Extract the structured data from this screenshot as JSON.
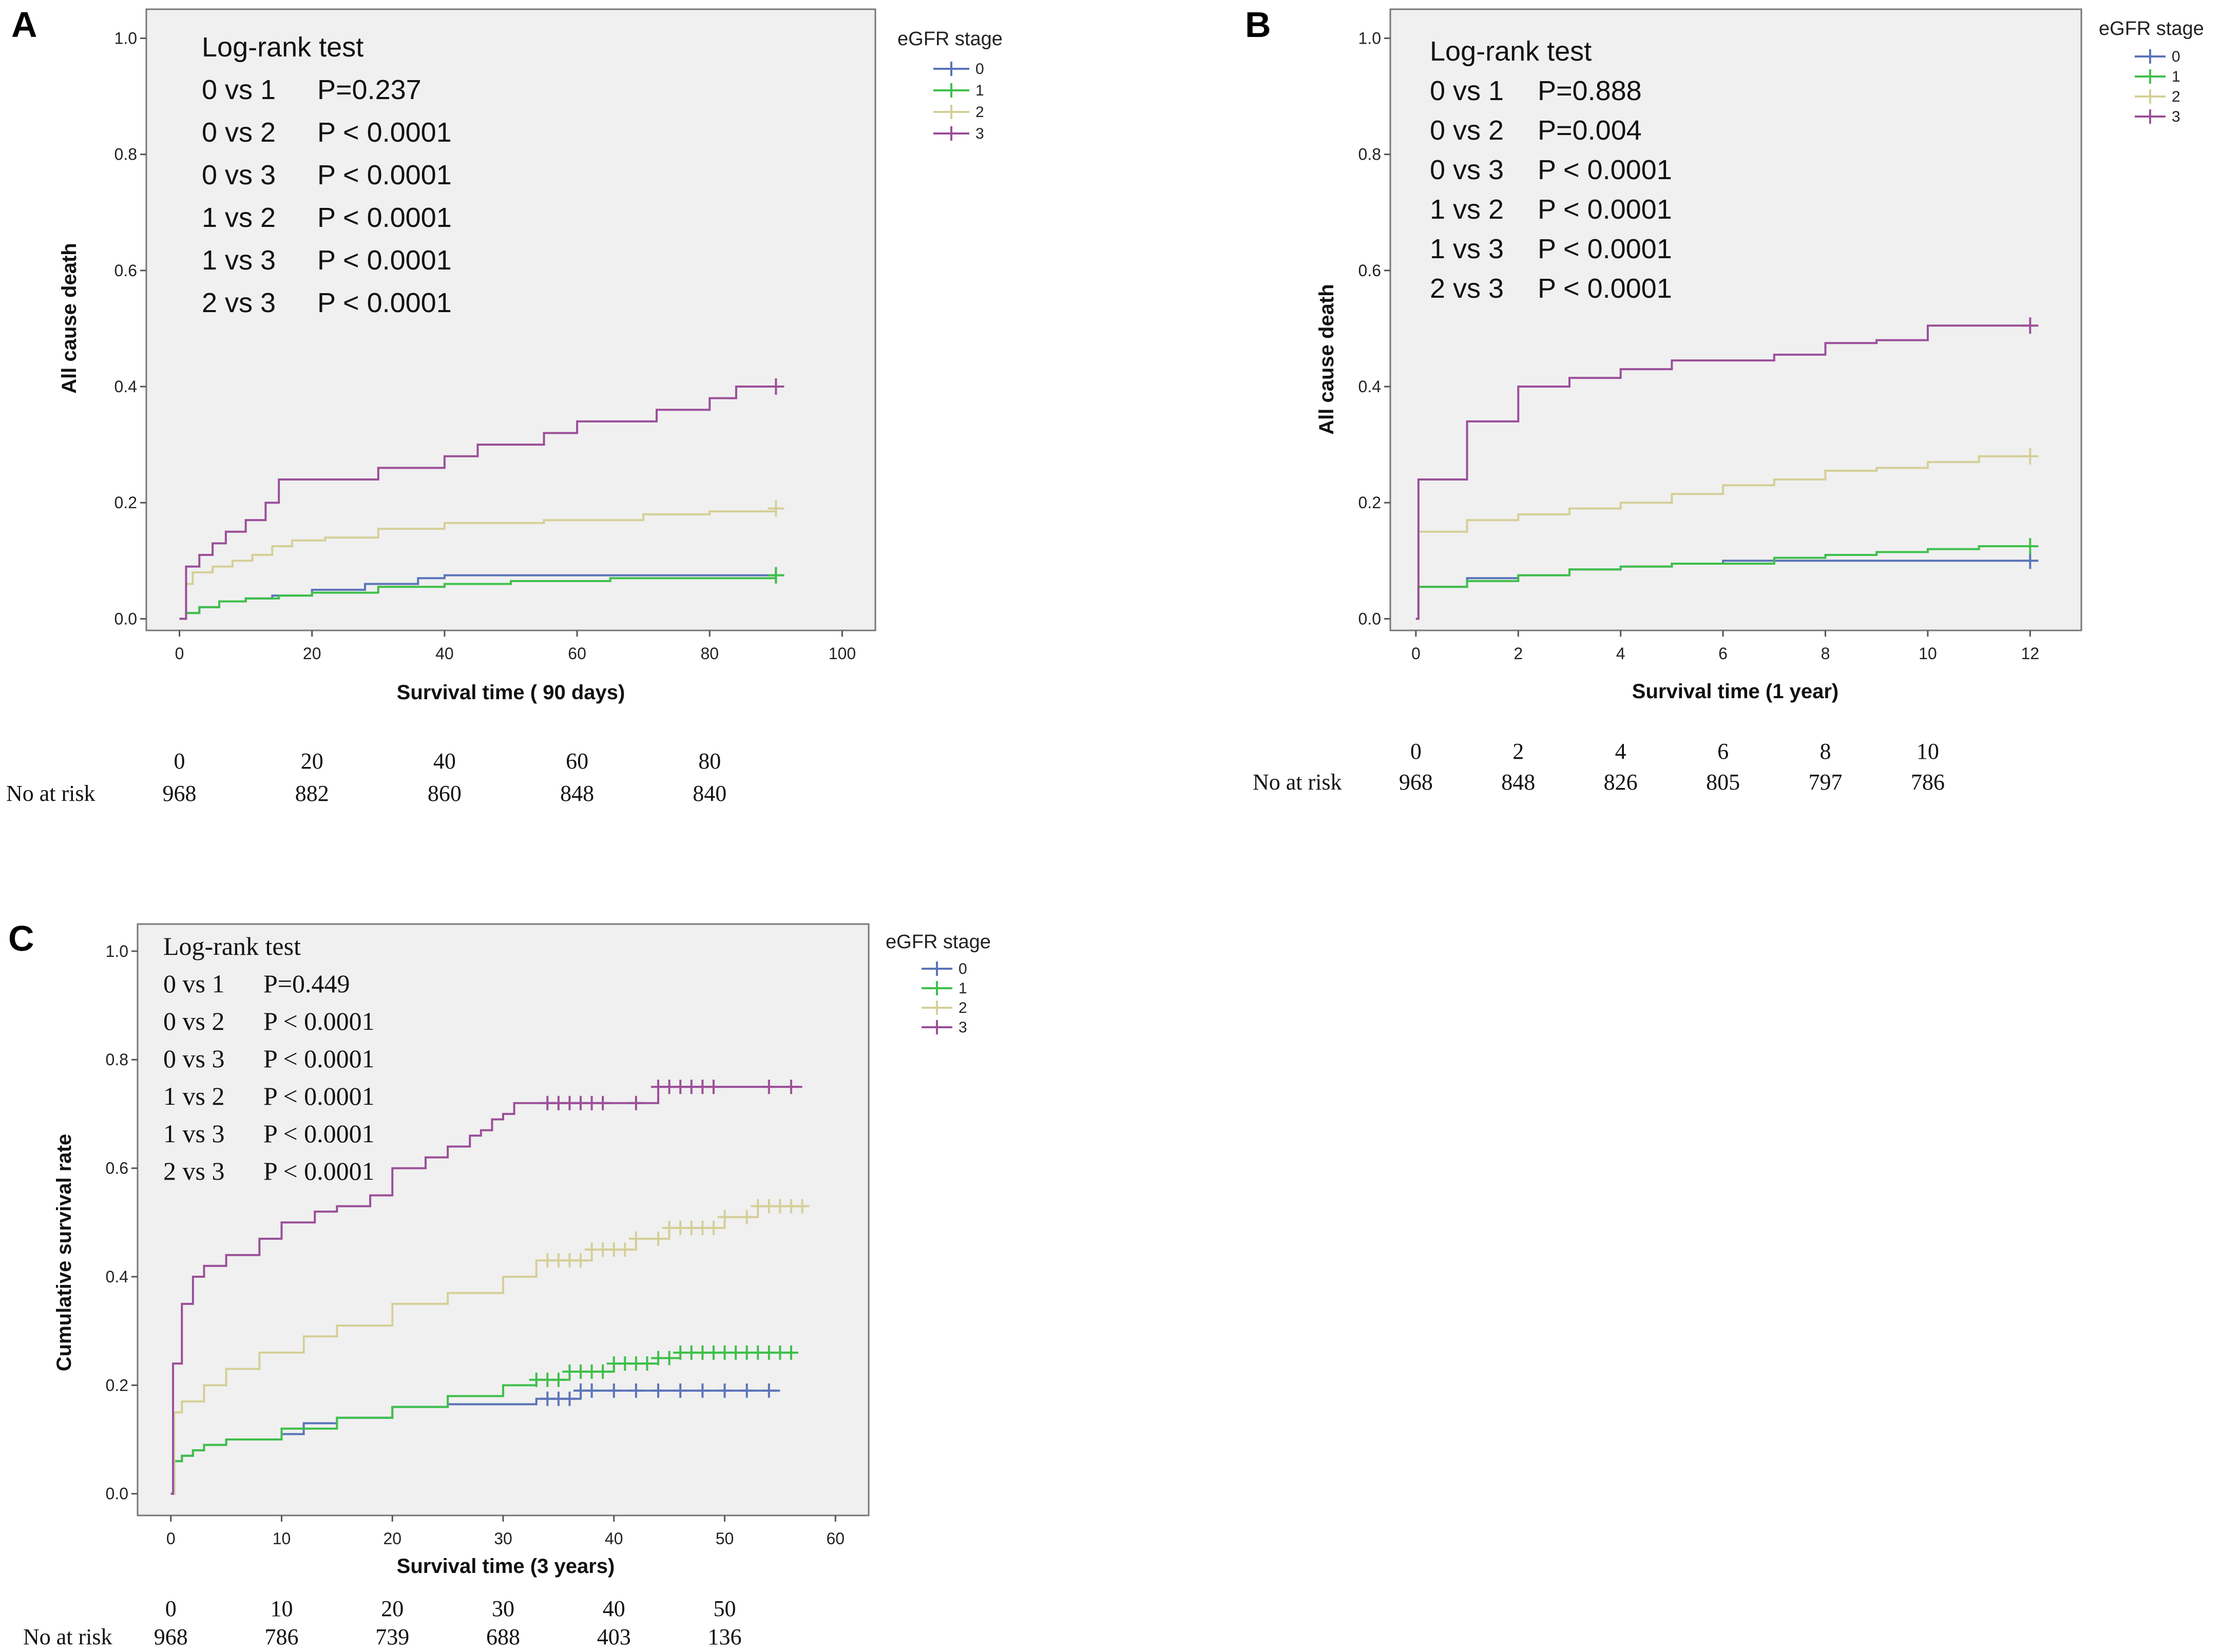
{
  "chart_data": [
    {
      "panel": "A",
      "type": "line",
      "step": true,
      "xlabel": "Survival time ( 90 days)",
      "ylabel": "All cause death",
      "xlim": [
        -5,
        105
      ],
      "ylim": [
        -0.02,
        1.05
      ],
      "xticks": [
        0,
        20,
        40,
        60,
        80,
        100
      ],
      "yticks": [
        0.0,
        0.2,
        0.4,
        0.6,
        0.8,
        1.0
      ],
      "legend": {
        "title": "eGFR stage",
        "entries": [
          "0",
          "1",
          "2",
          "3"
        ]
      },
      "logrank": {
        "title": "Log-rank test",
        "rows": [
          {
            "comp": "0 vs 1",
            "p": "P=0.237"
          },
          {
            "comp": "0 vs 2",
            "p": "P < 0.0001"
          },
          {
            "comp": "0 vs 3",
            "p": "P < 0.0001"
          },
          {
            "comp": "1 vs 2",
            "p": "P < 0.0001"
          },
          {
            "comp": "1 vs 3",
            "p": "P < 0.0001"
          },
          {
            "comp": "2 vs 3",
            "p": "P < 0.0001"
          }
        ]
      },
      "series": [
        {
          "name": "0",
          "color": "#5a74b8",
          "x": [
            0,
            1,
            3,
            6,
            10,
            14,
            20,
            28,
            36,
            40,
            60,
            90
          ],
          "y": [
            0,
            0.01,
            0.02,
            0.03,
            0.035,
            0.04,
            0.05,
            0.06,
            0.07,
            0.075,
            0.075,
            0.075
          ],
          "censored": [
            90
          ]
        },
        {
          "name": "1",
          "color": "#3fbf4a",
          "x": [
            0,
            1,
            3,
            6,
            10,
            15,
            20,
            30,
            40,
            50,
            65,
            90
          ],
          "y": [
            0,
            0.01,
            0.02,
            0.03,
            0.035,
            0.04,
            0.045,
            0.055,
            0.06,
            0.065,
            0.07,
            0.075
          ],
          "censored": [
            90
          ]
        },
        {
          "name": "2",
          "color": "#d5cf98",
          "x": [
            0,
            1,
            2,
            5,
            8,
            11,
            14,
            17,
            22,
            30,
            40,
            55,
            70,
            80,
            90
          ],
          "y": [
            0,
            0.06,
            0.08,
            0.09,
            0.1,
            0.11,
            0.125,
            0.135,
            0.14,
            0.155,
            0.165,
            0.17,
            0.18,
            0.185,
            0.19
          ],
          "censored": [
            90
          ]
        },
        {
          "name": "3",
          "color": "#9b4f99",
          "x": [
            0,
            1,
            3,
            5,
            7,
            10,
            13,
            15,
            25,
            30,
            35,
            40,
            45,
            50,
            55,
            60,
            65,
            72,
            80,
            84,
            90
          ],
          "y": [
            0,
            0.09,
            0.11,
            0.13,
            0.15,
            0.17,
            0.2,
            0.24,
            0.24,
            0.26,
            0.26,
            0.28,
            0.3,
            0.3,
            0.32,
            0.34,
            0.34,
            0.36,
            0.38,
            0.4,
            0.4
          ],
          "censored": [
            90
          ]
        }
      ],
      "risk_table": {
        "label": "No at risk",
        "times": [
          "0",
          "20",
          "40",
          "60",
          "80"
        ],
        "counts": [
          "968",
          "882",
          "860",
          "848",
          "840"
        ]
      }
    },
    {
      "panel": "B",
      "type": "line",
      "step": true,
      "xlabel": "Survival time (1 year)",
      "ylabel": "All cause death",
      "xlim": [
        -0.5,
        13
      ],
      "ylim": [
        -0.02,
        1.05
      ],
      "xticks": [
        0,
        2,
        4,
        6,
        8,
        10,
        12
      ],
      "yticks": [
        0.0,
        0.2,
        0.4,
        0.6,
        0.8,
        1.0
      ],
      "legend": {
        "title": "eGFR stage",
        "entries": [
          "0",
          "1",
          "2",
          "3"
        ]
      },
      "logrank": {
        "title": "Log-rank test",
        "rows": [
          {
            "comp": "0 vs 1",
            "p": "P=0.888"
          },
          {
            "comp": "0 vs 2",
            "p": "P=0.004"
          },
          {
            "comp": "0 vs 3",
            "p": "P < 0.0001"
          },
          {
            "comp": "1 vs 2",
            "p": "P < 0.0001"
          },
          {
            "comp": "1 vs 3",
            "p": "P < 0.0001"
          },
          {
            "comp": "2 vs 3",
            "p": "P < 0.0001"
          }
        ]
      },
      "series": [
        {
          "name": "0",
          "color": "#5a74b8",
          "x": [
            0,
            0.05,
            1,
            2,
            3,
            4,
            5,
            6,
            8,
            10,
            12
          ],
          "y": [
            0,
            0.055,
            0.07,
            0.075,
            0.085,
            0.09,
            0.095,
            0.1,
            0.1,
            0.1,
            0.1
          ],
          "censored": [
            12
          ]
        },
        {
          "name": "1",
          "color": "#3fbf4a",
          "x": [
            0,
            0.05,
            1,
            2,
            3,
            4,
            5,
            7,
            8,
            9,
            10,
            11,
            12
          ],
          "y": [
            0,
            0.055,
            0.065,
            0.075,
            0.085,
            0.09,
            0.095,
            0.105,
            0.11,
            0.115,
            0.12,
            0.125,
            0.125
          ],
          "censored": [
            12
          ]
        },
        {
          "name": "2",
          "color": "#d5cf98",
          "x": [
            0,
            0.05,
            1,
            2,
            3,
            4,
            5,
            6,
            7,
            8,
            9,
            10,
            11,
            12
          ],
          "y": [
            0,
            0.15,
            0.17,
            0.18,
            0.19,
            0.2,
            0.215,
            0.23,
            0.24,
            0.255,
            0.26,
            0.27,
            0.28,
            0.28
          ],
          "censored": [
            12
          ]
        },
        {
          "name": "3",
          "color": "#9b4f99",
          "x": [
            0,
            0.05,
            1,
            2,
            3,
            4,
            5,
            6,
            7,
            8,
            9,
            10,
            11,
            12
          ],
          "y": [
            0,
            0.24,
            0.34,
            0.4,
            0.415,
            0.43,
            0.445,
            0.445,
            0.455,
            0.475,
            0.48,
            0.505,
            0.505,
            0.505
          ],
          "censored": [
            12
          ]
        }
      ],
      "risk_table": {
        "label": "No at risk",
        "times": [
          "0",
          "2",
          "4",
          "6",
          "8",
          "10"
        ],
        "counts": [
          "968",
          "848",
          "826",
          "805",
          "797",
          "786"
        ]
      }
    },
    {
      "panel": "C",
      "type": "line",
      "step": true,
      "xlabel": "Survival time (3 years)",
      "ylabel": "Cumulative survival rate",
      "xlim": [
        -3,
        63
      ],
      "ylim": [
        -0.04,
        1.05
      ],
      "xticks": [
        0,
        10,
        20,
        30,
        40,
        50,
        60
      ],
      "yticks": [
        0.0,
        0.2,
        0.4,
        0.6,
        0.8,
        1.0
      ],
      "legend": {
        "title": "eGFR stage",
        "entries": [
          "0",
          "1",
          "2",
          "3"
        ]
      },
      "logrank": {
        "title": "Log-rank test",
        "rows": [
          {
            "comp": "0 vs 1",
            "p": "P=0.449"
          },
          {
            "comp": "0 vs 2",
            "p": "P < 0.0001"
          },
          {
            "comp": "0 vs 3",
            "p": "P < 0.0001"
          },
          {
            "comp": "1 vs 2",
            "p": "P < 0.0001"
          },
          {
            "comp": "1 vs 3",
            "p": "P < 0.0001"
          },
          {
            "comp": "2 vs 3",
            "p": "P < 0.0001"
          }
        ]
      },
      "series": [
        {
          "name": "0",
          "color": "#5a74b8",
          "x": [
            0,
            0.3,
            1,
            2,
            3,
            5,
            10,
            12,
            15,
            20,
            25,
            33,
            37,
            55
          ],
          "y": [
            0,
            0.06,
            0.07,
            0.08,
            0.09,
            0.1,
            0.11,
            0.13,
            0.14,
            0.16,
            0.165,
            0.175,
            0.19,
            0.19
          ],
          "censored": [
            34,
            35,
            36,
            37,
            38,
            40,
            42,
            44,
            46,
            48,
            50,
            52,
            54
          ]
        },
        {
          "name": "1",
          "color": "#3fbf4a",
          "x": [
            0,
            0.3,
            1,
            2,
            3,
            5,
            10,
            15,
            20,
            25,
            30,
            33,
            36,
            40,
            44,
            46,
            56
          ],
          "y": [
            0,
            0.06,
            0.07,
            0.08,
            0.09,
            0.1,
            0.12,
            0.14,
            0.16,
            0.18,
            0.2,
            0.21,
            0.225,
            0.24,
            0.25,
            0.26,
            0.26
          ],
          "censored": [
            33,
            34,
            35,
            36,
            37,
            38,
            39,
            40,
            41,
            42,
            43,
            44,
            45,
            46,
            47,
            48,
            49,
            50,
            51,
            52,
            53,
            54,
            55,
            56
          ]
        },
        {
          "name": "2",
          "color": "#d5cf98",
          "x": [
            0,
            0.3,
            1,
            3,
            5,
            8,
            12,
            15,
            20,
            25,
            30,
            33,
            38,
            42,
            45,
            50,
            53,
            57
          ],
          "y": [
            0,
            0.15,
            0.17,
            0.2,
            0.23,
            0.26,
            0.29,
            0.31,
            0.35,
            0.37,
            0.4,
            0.43,
            0.45,
            0.47,
            0.49,
            0.51,
            0.53,
            0.53
          ],
          "censored": [
            34,
            35,
            36,
            37,
            38,
            39,
            40,
            41,
            42,
            44,
            45,
            46,
            47,
            48,
            49,
            50,
            52,
            53,
            54,
            55,
            56,
            57
          ]
        },
        {
          "name": "3",
          "color": "#9b4f99",
          "x": [
            0,
            0.2,
            1,
            2,
            3,
            5,
            8,
            10,
            13,
            15,
            18,
            20,
            23,
            25,
            27,
            28,
            29,
            30,
            31,
            33,
            44,
            57
          ],
          "y": [
            0,
            0.24,
            0.35,
            0.4,
            0.42,
            0.44,
            0.47,
            0.5,
            0.52,
            0.53,
            0.55,
            0.6,
            0.62,
            0.64,
            0.66,
            0.67,
            0.69,
            0.7,
            0.72,
            0.72,
            0.75,
            0.75
          ],
          "censored": [
            34,
            35,
            36,
            37,
            38,
            39,
            42,
            44,
            45,
            46,
            47,
            48,
            49,
            54,
            56
          ]
        }
      ],
      "risk_table": {
        "label": "No at risk",
        "times": [
          "0",
          "10",
          "20",
          "30",
          "40",
          "50"
        ],
        "counts": [
          "968",
          "786",
          "739",
          "688",
          "403",
          "136"
        ]
      }
    }
  ]
}
